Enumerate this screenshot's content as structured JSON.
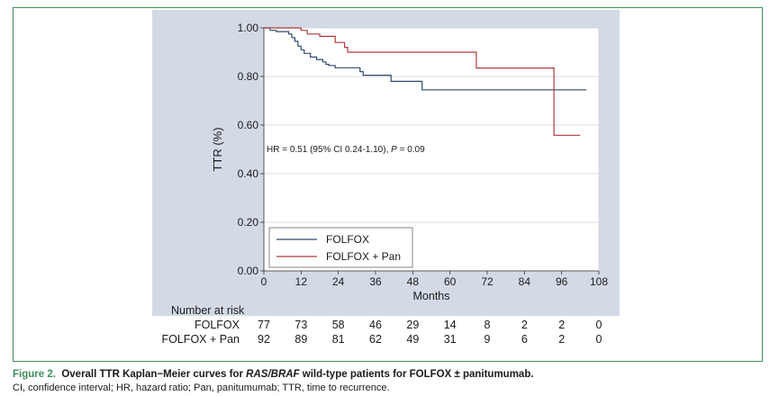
{
  "chart_data": {
    "type": "line",
    "step": true,
    "ylabel": "TTR (%)",
    "xlabel": "Months",
    "xlim": [
      0,
      108
    ],
    "ylim": [
      0,
      1.0
    ],
    "xticks": [
      "0",
      "12",
      "24",
      "36",
      "48",
      "60",
      "72",
      "84",
      "96",
      "108"
    ],
    "yticks": [
      "0.00",
      "0.20",
      "0.40",
      "0.60",
      "0.80",
      "1.00"
    ],
    "grid": "horizontal",
    "legend_position": "bottom-left",
    "annotation": {
      "prefix": "HR = 0.51 (95% CI 0.24-1.10), ",
      "p_symbol": "P",
      "p_rest": " = 0.09"
    },
    "series": [
      {
        "name": "FOLFOX",
        "color": "#2e4b6e",
        "points": [
          [
            0,
            1.0
          ],
          [
            2,
            0.99
          ],
          [
            4,
            0.985
          ],
          [
            6,
            0.985
          ],
          [
            8,
            0.975
          ],
          [
            9,
            0.96
          ],
          [
            10,
            0.945
          ],
          [
            11,
            0.925
          ],
          [
            12,
            0.91
          ],
          [
            13,
            0.895
          ],
          [
            15,
            0.88
          ],
          [
            17,
            0.87
          ],
          [
            19,
            0.86
          ],
          [
            20,
            0.85
          ],
          [
            21,
            0.845
          ],
          [
            23,
            0.836
          ],
          [
            31,
            0.82
          ],
          [
            32,
            0.805
          ],
          [
            41,
            0.78
          ],
          [
            51,
            0.745
          ],
          [
            104,
            0.745
          ]
        ]
      },
      {
        "name": "FOLFOX + Pan",
        "color": "#b03a3a",
        "points": [
          [
            0,
            1.0
          ],
          [
            12,
            0.99
          ],
          [
            14,
            0.975
          ],
          [
            18,
            0.965
          ],
          [
            23,
            0.94
          ],
          [
            26,
            0.92
          ],
          [
            27,
            0.9
          ],
          [
            68,
            0.9
          ],
          [
            68.5,
            0.835
          ],
          [
            93,
            0.835
          ],
          [
            93.5,
            0.558
          ],
          [
            102,
            0.558
          ]
        ]
      }
    ],
    "risk_table": {
      "title": "Number at risk",
      "time_points": [
        0,
        12,
        24,
        36,
        48,
        60,
        72,
        84,
        96,
        108
      ],
      "rows": [
        {
          "label": "FOLFOX",
          "values": [
            "77",
            "73",
            "58",
            "46",
            "29",
            "14",
            "8",
            "2",
            "2",
            "0"
          ]
        },
        {
          "label": "FOLFOX + Pan",
          "values": [
            "92",
            "89",
            "81",
            "62",
            "49",
            "31",
            "9",
            "6",
            "2",
            "0"
          ]
        }
      ]
    }
  },
  "caption": {
    "figure_label": "Figure 2.",
    "title_part1": "Overall TTR Kaplan−Meier curves for ",
    "title_italic": "RAS/BRAF",
    "title_part2": " wild-type patients for FOLFOX ± panitumumab.",
    "notes": "CI, confidence interval; HR, hazard ratio; Pan, panitumumab; TTR, time to recurrence."
  }
}
